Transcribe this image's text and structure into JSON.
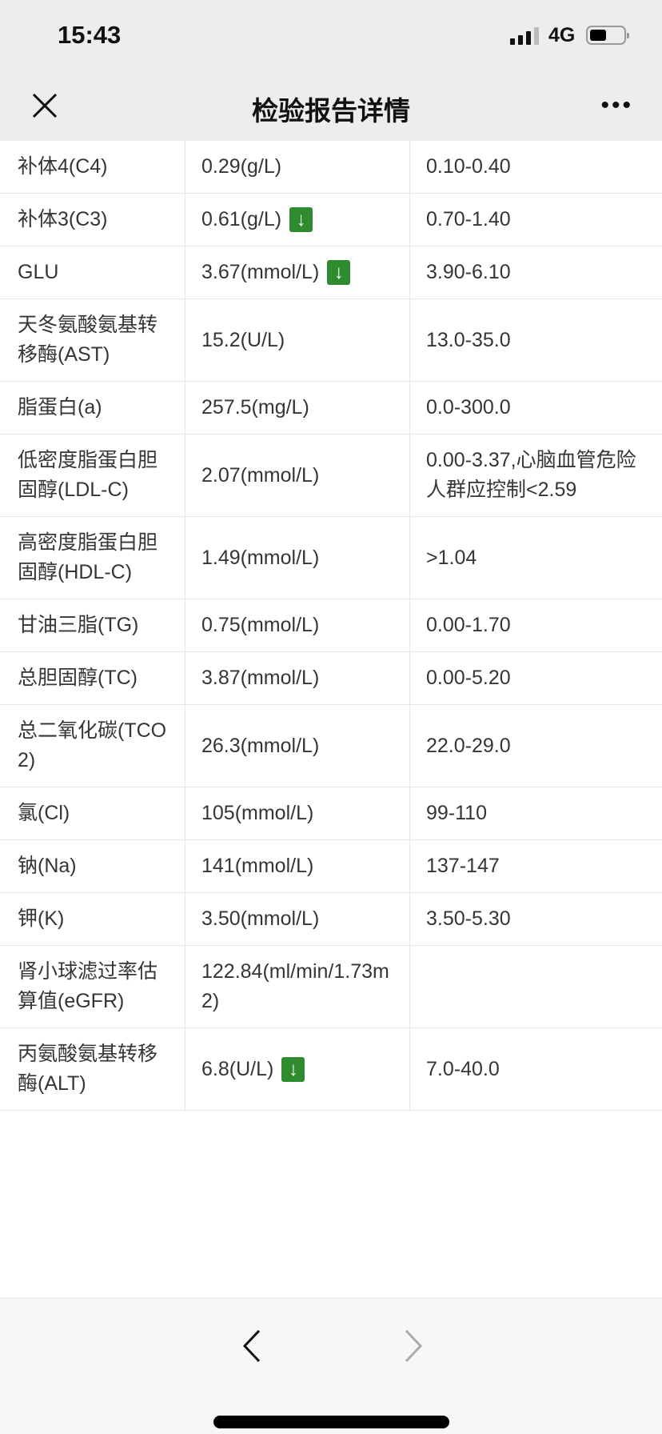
{
  "status_bar": {
    "time": "15:43",
    "network": "4G"
  },
  "nav": {
    "title": "检验报告详情",
    "close_icon": "close-icon",
    "more_icon": "more-icon"
  },
  "colors": {
    "low_flag": "#2e8b2e",
    "nav_bg": "#ededed"
  },
  "rows": [
    {
      "name": "补体4(C4)",
      "value": "0.29(g/L)",
      "range": "0.10-0.40",
      "low": false
    },
    {
      "name": "补体3(C3)",
      "value": "0.61(g/L)",
      "range": "0.70-1.40",
      "low": true
    },
    {
      "name": "GLU",
      "value": "3.67(mmol/L)",
      "range": "3.90-6.10",
      "low": true
    },
    {
      "name": "天冬氨酸氨基转移酶(AST)",
      "value": "15.2(U/L)",
      "range": "13.0-35.0",
      "low": false
    },
    {
      "name": "脂蛋白(a)",
      "value": "257.5(mg/L)",
      "range": "0.0-300.0",
      "low": false
    },
    {
      "name": "低密度脂蛋白胆固醇(LDL-C)",
      "value": "2.07(mmol/L)",
      "range": "0.00-3.37,心脑血管危险人群应控制<2.59",
      "low": false
    },
    {
      "name": "高密度脂蛋白胆固醇(HDL-C)",
      "value": "1.49(mmol/L)",
      "range": ">1.04",
      "low": false
    },
    {
      "name": "甘油三脂(TG)",
      "value": "0.75(mmol/L)",
      "range": "0.00-1.70",
      "low": false
    },
    {
      "name": "总胆固醇(TC)",
      "value": "3.87(mmol/L)",
      "range": "0.00-5.20",
      "low": false
    },
    {
      "name": "总二氧化碳(TCO2)",
      "value": "26.3(mmol/L)",
      "range": "22.0-29.0",
      "low": false
    },
    {
      "name": "氯(Cl)",
      "value": "105(mmol/L)",
      "range": "99-110",
      "low": false
    },
    {
      "name": "钠(Na)",
      "value": "141(mmol/L)",
      "range": "137-147",
      "low": false
    },
    {
      "name": "钾(K)",
      "value": "3.50(mmol/L)",
      "range": "3.50-5.30",
      "low": false
    },
    {
      "name": "肾小球滤过率估算值(eGFR)",
      "value": "122.84(ml/min/1.73m2)",
      "range": "",
      "low": false
    },
    {
      "name": "丙氨酸氨基转移酶(ALT)",
      "value": "6.8(U/L)",
      "range": "7.0-40.0",
      "low": true
    }
  ],
  "low_icon": "arrow-down-icon",
  "low_glyph": "↓"
}
